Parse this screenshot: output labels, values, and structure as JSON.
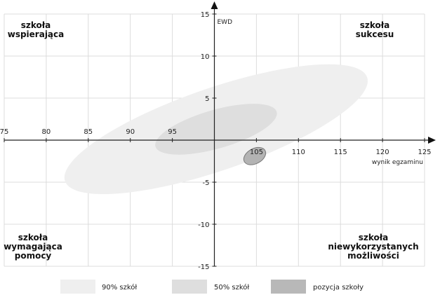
{
  "chart_data": {
    "type": "scatter",
    "xlabel": "wynik egzaminu",
    "ylabel": "EWD",
    "xlim": [
      75,
      125
    ],
    "ylim": [
      -15,
      15
    ],
    "x_ticks": [
      "75",
      "80",
      "85",
      "90",
      "95",
      "105",
      "110",
      "115",
      "120",
      "125"
    ],
    "y_ticks": [
      "15",
      "10",
      "5",
      "-5",
      "-10",
      "-15"
    ],
    "grid": true,
    "quadrants": {
      "top_left": [
        "szkoła",
        "wspierająca"
      ],
      "top_right": [
        "szkoła",
        "sukcesu"
      ],
      "bottom_left": [
        "szkoła",
        "wymagająca",
        "pomocy"
      ],
      "bottom_right": [
        "szkoła",
        "niewykorzystanych",
        "możliwości"
      ]
    },
    "ellipses": [
      {
        "name": "90% szkół",
        "cx": 100.2,
        "cy": 1.3,
        "rx": 19.0,
        "ry": 4.9,
        "angle_deg": -19,
        "color": "#efefef"
      },
      {
        "name": "50% szkół",
        "cx": 100.2,
        "cy": 1.3,
        "rx": 7.5,
        "ry": 2.3,
        "angle_deg": -16,
        "color": "#dedede"
      },
      {
        "name": "pozycja szkoły",
        "cx": 104.8,
        "cy": -1.9,
        "rx": 1.4,
        "ry": 0.9,
        "angle_deg": -28,
        "color": "#b3b3b3"
      }
    ],
    "legend": [
      {
        "label": "90% szkół",
        "color": "#efefef"
      },
      {
        "label": "50% szkół",
        "color": "#dedede"
      },
      {
        "label": "pozycja szkoły",
        "color": "#b8b8b8"
      }
    ]
  }
}
